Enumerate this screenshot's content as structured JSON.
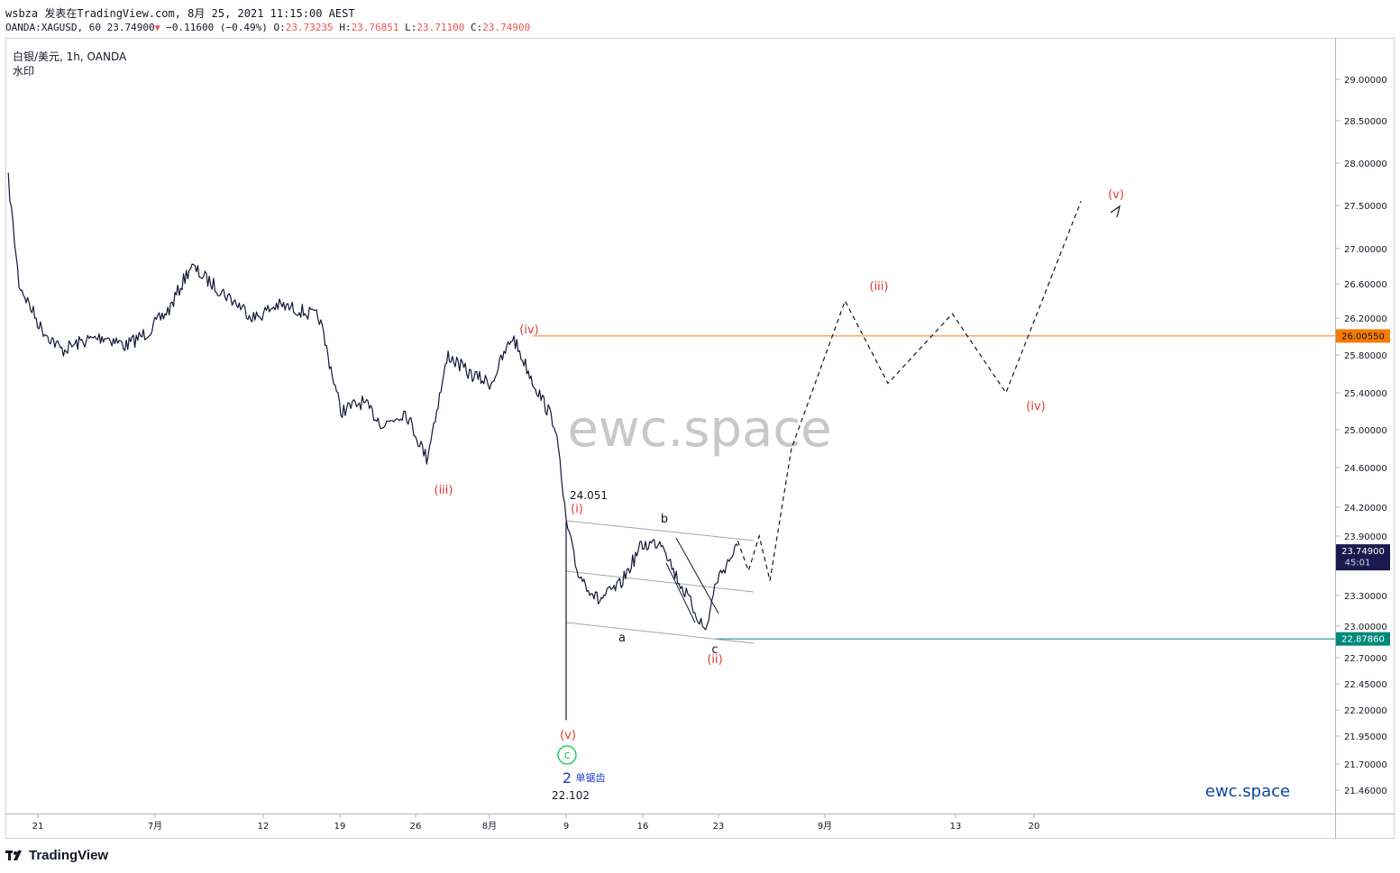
{
  "header": {
    "publish_line": "wsbza 发表在TradingView.com, 8月 25, 2021 11:15:00 AEST",
    "symbol_prefix": "OANDA:XAGUSD, 60 23.74900",
    "change": "−0.11600 (−0.49%)",
    "o_label": "O:",
    "o_value": "23.73235",
    "h_label": "H:",
    "h_value": "23.76851",
    "l_label": "L:",
    "l_value": "23.71100",
    "c_label": "C:",
    "c_value": "23.74900"
  },
  "footer": {
    "brand": "TradingView"
  },
  "colors": {
    "candles": "#131736",
    "resistance": "#f57c00",
    "support": "#00897b",
    "last_price": "#1a1a4e",
    "wave_label": "#e53935",
    "channel": "#a6a6a6",
    "watermark": "#c8c8c8",
    "brand_blue": "#0d47a1"
  },
  "chart_data": {
    "type": "line",
    "title": "白银/美元, 1h, OANDA",
    "subtitle": "水印",
    "ylim": [
      21.25,
      29.5
    ],
    "y_ticks": [
      "29.00000",
      "28.50000",
      "28.00000",
      "27.50000",
      "27.00000",
      "26.60000",
      "26.20000",
      "25.80000",
      "25.40000",
      "25.00000",
      "24.60000",
      "24.20000",
      "23.90000",
      "23.30000",
      "23.00000",
      "22.70000",
      "22.45000",
      "22.20000",
      "21.95000",
      "21.70000",
      "21.46000"
    ],
    "x_ticks": [
      "21",
      "7月",
      "12",
      "19",
      "26",
      "8月",
      "9",
      "16",
      "23",
      "9月",
      "13",
      "20"
    ],
    "series": [
      {
        "name": "",
        "kind": "price",
        "x": [
          "2021-06-18",
          "2021-06-19",
          "2021-06-21",
          "2021-06-23",
          "2021-06-25",
          "2021-06-27",
          "2021-06-29",
          "2021-07-01",
          "2021-07-03",
          "2021-07-05",
          "2021-07-07",
          "2021-07-09",
          "2021-07-11",
          "2021-07-13",
          "2021-07-15",
          "2021-07-17",
          "2021-07-19",
          "2021-07-21",
          "2021-07-23",
          "2021-07-25",
          "2021-07-27",
          "2021-07-29",
          "2021-07-31",
          "2021-08-02",
          "2021-08-04",
          "2021-08-06",
          "2021-08-08",
          "2021-08-09",
          "2021-08-10",
          "2021-08-12",
          "2021-08-14",
          "2021-08-16",
          "2021-08-18",
          "2021-08-19",
          "2021-08-21",
          "2021-08-22",
          "2021-08-23",
          "2021-08-25"
        ],
        "y": [
          27.8,
          26.6,
          26.1,
          25.85,
          25.95,
          26.0,
          25.9,
          26.05,
          26.3,
          26.8,
          26.6,
          26.4,
          26.2,
          26.35,
          26.3,
          26.2,
          25.2,
          25.3,
          25.05,
          25.2,
          24.7,
          25.8,
          25.6,
          25.5,
          26.0,
          25.5,
          25.05,
          24.05,
          23.55,
          23.25,
          23.4,
          23.8,
          23.85,
          23.55,
          23.15,
          22.95,
          23.45,
          23.8
        ]
      },
      {
        "name": "",
        "kind": "projection",
        "x": [
          "2021-08-25",
          "2021-08-26",
          "2021-08-27",
          "2021-08-28",
          "2021-08-30",
          "2021-09-04",
          "2021-09-08",
          "2021-09-14",
          "2021-09-19",
          "2021-09-26"
        ],
        "y": [
          23.85,
          23.55,
          23.9,
          23.45,
          24.8,
          26.4,
          25.5,
          26.25,
          25.4,
          27.55
        ]
      }
    ],
    "price_labels": {
      "resistance": "26.00550",
      "support": "22.87860",
      "last": "23.74900",
      "countdown": "45:01"
    },
    "levels": {
      "resistance": 26.0055,
      "support": 22.8786,
      "last": 23.749
    },
    "annotations": {
      "wave_iv_prev": "(iv)",
      "wave_iii_prev": "(iii)",
      "wave_i": "(i)",
      "wave_ii": "(ii)",
      "wave_v_prev": "(v)",
      "wave_iii_next": "(iii)",
      "wave_iv_next": "(iv)",
      "wave_v_next": "(v)",
      "sub_a": "a",
      "sub_b": "b",
      "sub_c": "c",
      "circle_c": "c",
      "wave_2": "2",
      "zigzag_label": "单锯齿",
      "high_value": "24.051",
      "low_value": "22.102"
    },
    "watermark": "ewc.space",
    "brand_mark": "ewc.space",
    "grid": false,
    "legend": "none"
  }
}
